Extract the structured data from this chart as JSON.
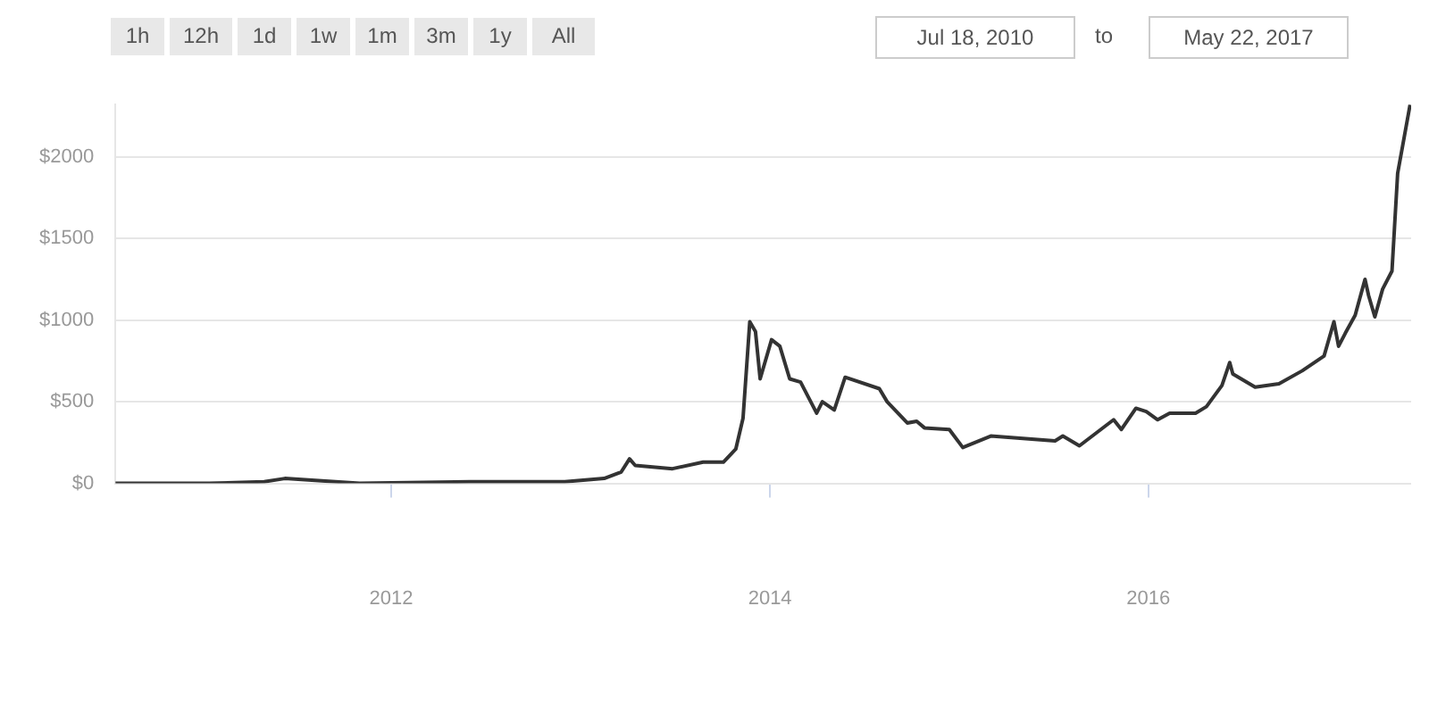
{
  "chart_data": {
    "type": "line",
    "annotations": [
      "1h",
      "12h",
      "1d",
      "1w",
      "1m",
      "3m",
      "1y",
      "All",
      "Jul 18, 2010",
      "to",
      "May 22, 2017"
    ],
    "x": [
      "2010-07-18",
      "2011-01-15",
      "2011-05-01",
      "2011-06-10",
      "2011-08-01",
      "2011-11-01",
      "2012-06-01",
      "2012-12-01",
      "2013-02-15",
      "2013-03-20",
      "2013-04-05",
      "2013-04-16",
      "2013-06-27",
      "2013-08-25",
      "2013-10-03",
      "2013-10-27",
      "2013-11-10",
      "2013-11-23",
      "2013-12-04",
      "2013-12-13",
      "2014-01-04",
      "2014-01-20",
      "2014-02-08",
      "2014-03-01",
      "2014-04-01",
      "2014-04-12",
      "2014-05-05",
      "2014-05-26",
      "2014-07-31",
      "2014-08-15",
      "2014-09-23",
      "2014-10-11",
      "2014-10-26",
      "2014-12-13",
      "2015-01-08",
      "2015-03-03",
      "2015-07-05",
      "2015-07-20",
      "2015-08-21",
      "2015-10-26",
      "2015-11-10",
      "2015-12-08",
      "2015-12-28",
      "2016-01-19",
      "2016-02-11",
      "2016-04-01",
      "2016-04-22",
      "2016-05-22",
      "2016-06-06",
      "2016-06-12",
      "2016-07-25",
      "2016-09-09",
      "2016-10-24",
      "2016-12-05",
      "2016-12-24",
      "2017-01-02",
      "2017-01-15",
      "2017-02-03",
      "2017-02-22",
      "2017-03-01",
      "2017-03-13",
      "2017-03-28",
      "2017-04-15",
      "2017-04-26",
      "2017-05-20"
    ],
    "series": [
      {
        "color": "#333333",
        "values": [
          0,
          0,
          10,
          30,
          20,
          0,
          10,
          10,
          30,
          70,
          150,
          110,
          90,
          130,
          130,
          210,
          400,
          990,
          930,
          640,
          880,
          840,
          640,
          620,
          430,
          500,
          450,
          650,
          580,
          500,
          370,
          380,
          340,
          330,
          220,
          290,
          260,
          290,
          230,
          390,
          330,
          460,
          440,
          390,
          430,
          430,
          470,
          600,
          740,
          670,
          590,
          610,
          690,
          780,
          990,
          840,
          920,
          1030,
          1250,
          1150,
          1020,
          1190,
          1300,
          1900,
          2320
        ]
      }
    ],
    "xlim": [
      "2010-07-18",
      "2017-05-22"
    ],
    "xticks": [
      "2012",
      "2014",
      "2016"
    ],
    "ylim": [
      0,
      2320
    ],
    "yticks": [
      {
        "value": 0,
        "label": "$0"
      },
      {
        "value": 500,
        "label": "$500"
      },
      {
        "value": 1000,
        "label": "$1000"
      },
      {
        "value": 1500,
        "label": "$1500"
      },
      {
        "value": 2000,
        "label": "$2000"
      }
    ],
    "grid": "y",
    "legend": false,
    "marker": "none",
    "line_style": "solid"
  }
}
